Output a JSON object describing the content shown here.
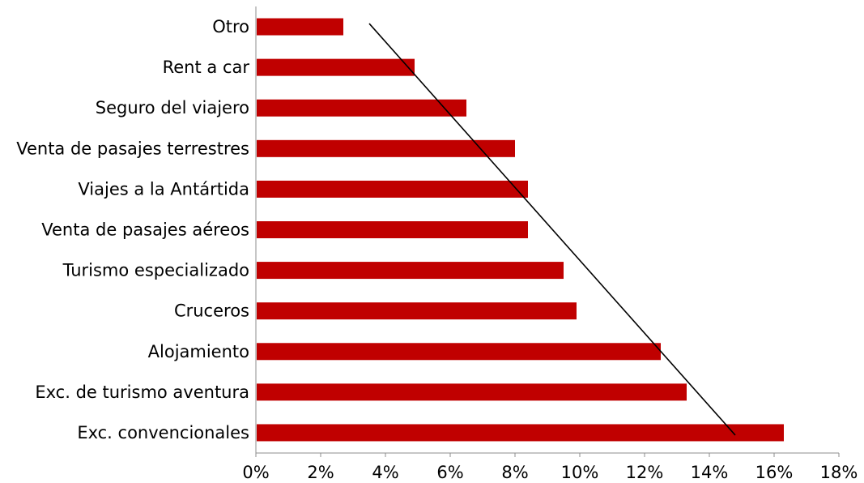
{
  "chart_data": {
    "type": "bar",
    "orientation": "horizontal",
    "categories": [
      "Otro",
      "Rent a car",
      "Seguro del viajero",
      "Venta de pasajes terrestres",
      "Viajes a la Antártida",
      "Venta de pasajes aéreos",
      "Turismo especializado",
      "Cruceros",
      "Alojamiento",
      "Exc. de turismo aventura",
      "Exc. convencionales"
    ],
    "values": [
      2.7,
      4.9,
      6.5,
      8.0,
      8.4,
      8.4,
      9.5,
      9.9,
      12.5,
      13.3,
      16.3
    ],
    "xlim": [
      0,
      18
    ],
    "xticks": [
      0,
      2,
      4,
      6,
      8,
      10,
      12,
      14,
      16,
      18
    ],
    "tick_format": "%",
    "bar_color": "#c00000",
    "trendline": {
      "color": "#000000",
      "from": {
        "category": "Otro",
        "value": 3.5
      },
      "to": {
        "category": "Exc. convencionales",
        "value": 14.8
      }
    },
    "title": "",
    "xlabel": "",
    "ylabel": "",
    "grid": false,
    "legend": "none"
  }
}
